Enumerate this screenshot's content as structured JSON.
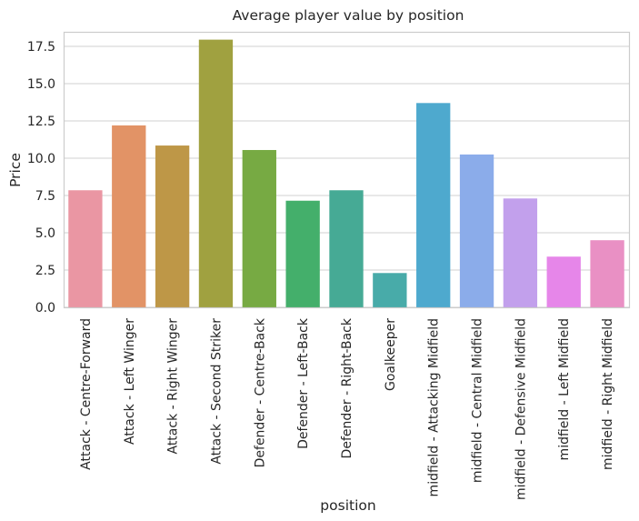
{
  "chart_data": {
    "type": "bar",
    "title": "Average player value by position",
    "xlabel": "position",
    "ylabel": "Price",
    "ylim": [
      0,
      18.8
    ],
    "yticks": [
      0.0,
      2.5,
      5.0,
      7.5,
      10.0,
      12.5,
      15.0,
      17.5
    ],
    "ytick_labels": [
      "0.0",
      "2.5",
      "5.0",
      "7.5",
      "10.0",
      "12.5",
      "15.0",
      "17.5"
    ],
    "grid": "horizontal",
    "categories": [
      "Attack - Centre-Forward",
      "Attack - Left Winger",
      "Attack - Right Winger",
      "Attack - Second Striker",
      "Defender - Centre-Back",
      "Defender - Left-Back",
      "Defender - Right-Back",
      "Goalkeeper",
      "midfield - Attacking Midfield",
      "midfield - Central Midfield",
      "midfield - Defensive Midfield",
      "midfield - Left Midfield",
      "midfield - Right Midfield"
    ],
    "values": [
      7.85,
      12.2,
      10.85,
      17.95,
      10.55,
      7.15,
      7.85,
      2.3,
      13.7,
      10.25,
      7.3,
      3.4,
      4.5
    ],
    "colors": [
      "#ea96a3",
      "#e29366",
      "#be9747",
      "#a0a140",
      "#77aa43",
      "#44af6b",
      "#46aa95",
      "#48aba9",
      "#4ea9ce",
      "#8bacea",
      "#c2a0ec",
      "#e686e9",
      "#e990c4"
    ]
  }
}
